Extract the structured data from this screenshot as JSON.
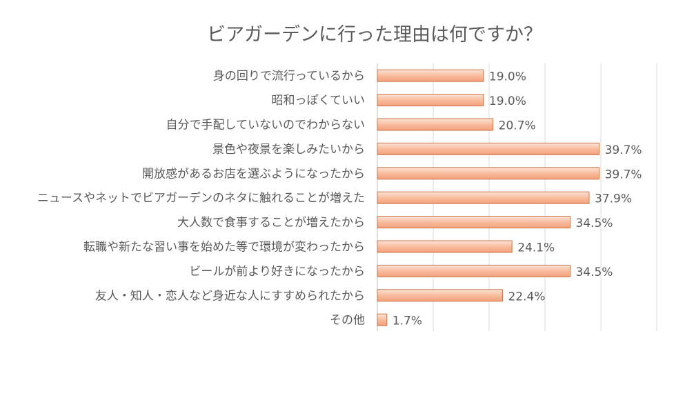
{
  "chart_data": {
    "type": "bar",
    "orientation": "horizontal",
    "title": "ビアガーデンに行った理由は何ですか？",
    "categories": [
      "身の回りで流行っているから",
      "昭和っぽくていい",
      "自分で手配していないのでわからない",
      "景色や夜景を楽しみたいから",
      "開放感があるお店を選ぶようになったから",
      "ニュースやネットでビアガーデンのネタに触れることが増えた",
      "大人数で食事することが増えたから",
      "転職や新たな習い事を始めた等で環境が変わったから",
      "ビールが前より好きになったから",
      "友人・知人・恋人など身近な人にすすめられたから",
      "その他"
    ],
    "values": [
      19.0,
      19.0,
      20.7,
      39.7,
      39.7,
      37.9,
      34.5,
      24.1,
      34.5,
      22.4,
      1.7
    ],
    "value_labels": [
      "19.0%",
      "19.0%",
      "20.7%",
      "39.7%",
      "39.7%",
      "37.9%",
      "34.5%",
      "24.1%",
      "34.5%",
      "22.4%",
      "1.7%"
    ],
    "xlim": [
      0,
      50
    ],
    "grid": true,
    "bar_color": "#f7b89a",
    "bar_border_color": "#c8764c"
  }
}
